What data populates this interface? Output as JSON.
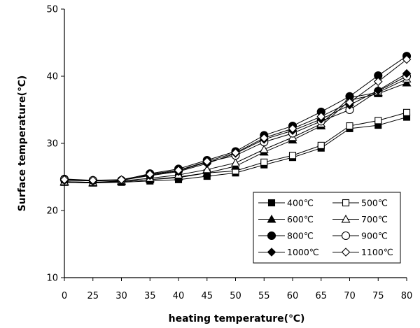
{
  "chart_data": {
    "type": "line",
    "xlabel": "heating temperature(℃)",
    "ylabel": "Surface temperature(℃)",
    "x": [
      0,
      25,
      30,
      35,
      40,
      45,
      50,
      55,
      60,
      65,
      70,
      75,
      80
    ],
    "xlim": [
      0,
      80
    ],
    "ylim": [
      10,
      50
    ],
    "yticks": [
      10,
      20,
      30,
      40,
      50
    ],
    "grid": false,
    "legend_position": "bottom-right",
    "series": [
      {
        "name": "400℃",
        "marker": "filled-square",
        "values": [
          24.2,
          24.1,
          24.2,
          24.4,
          24.6,
          25.1,
          25.6,
          26.8,
          27.9,
          29.3,
          32.2,
          32.7,
          33.9
        ]
      },
      {
        "name": "500℃",
        "marker": "open-square",
        "values": [
          24.3,
          24.2,
          24.3,
          24.6,
          24.9,
          25.6,
          25.9,
          27.2,
          28.2,
          29.7,
          32.6,
          33.4,
          34.6
        ]
      },
      {
        "name": "600℃",
        "marker": "filled-triangle",
        "values": [
          24.2,
          24.1,
          24.3,
          24.6,
          25.0,
          25.6,
          26.6,
          28.7,
          30.5,
          32.6,
          36.4,
          37.4,
          39.0
        ]
      },
      {
        "name": "700℃",
        "marker": "open-triangle",
        "values": [
          24.3,
          24.2,
          24.4,
          24.8,
          25.3,
          26.1,
          27.1,
          29.1,
          30.9,
          32.9,
          36.8,
          37.6,
          39.6
        ]
      },
      {
        "name": "800℃",
        "marker": "filled-circle",
        "values": [
          24.7,
          24.5,
          24.5,
          25.5,
          26.2,
          27.5,
          28.8,
          31.2,
          32.6,
          34.7,
          37.0,
          40.1,
          43.0
        ]
      },
      {
        "name": "900℃",
        "marker": "open-circle",
        "values": [
          24.6,
          24.5,
          24.5,
          25.3,
          25.9,
          27.2,
          28.2,
          30.2,
          31.5,
          33.3,
          35.0,
          37.8,
          40.0
        ]
      },
      {
        "name": "1000℃",
        "marker": "filled-diamond",
        "values": [
          24.5,
          24.4,
          24.5,
          25.2,
          25.8,
          27.0,
          28.5,
          30.6,
          31.9,
          33.6,
          35.7,
          37.9,
          40.4
        ]
      },
      {
        "name": "1100℃",
        "marker": "open-diamond",
        "values": [
          24.6,
          24.5,
          24.6,
          25.4,
          26.0,
          27.3,
          28.6,
          30.8,
          32.2,
          34.0,
          36.1,
          39.2,
          42.5
        ]
      }
    ]
  }
}
